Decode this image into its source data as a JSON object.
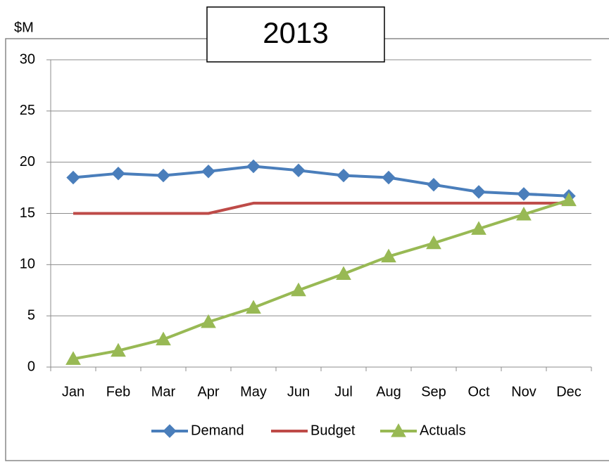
{
  "chart_data": {
    "type": "line",
    "title": "2013",
    "ylabel": "$M",
    "categories": [
      "Jan",
      "Feb",
      "Mar",
      "Apr",
      "May",
      "Jun",
      "Jul",
      "Aug",
      "Sep",
      "Oct",
      "Nov",
      "Dec"
    ],
    "series": [
      {
        "name": "Demand",
        "color": "#4a7ebb",
        "marker": "diamond",
        "values": [
          18.5,
          18.9,
          18.7,
          19.1,
          19.6,
          19.2,
          18.7,
          18.5,
          17.8,
          17.1,
          16.9,
          16.7
        ]
      },
      {
        "name": "Budget",
        "color": "#be4b48",
        "marker": "none",
        "values": [
          15,
          15,
          15,
          15,
          16,
          16,
          16,
          16,
          16,
          16,
          16,
          16
        ]
      },
      {
        "name": "Actuals",
        "color": "#98b954",
        "marker": "triangle",
        "values": [
          0.8,
          1.6,
          2.7,
          4.4,
          5.8,
          7.5,
          9.1,
          10.8,
          12.1,
          13.5,
          14.9,
          16.3
        ]
      }
    ],
    "ylim": [
      0,
      30
    ],
    "yticks": [
      0,
      5,
      10,
      15,
      20,
      25,
      30
    ],
    "grid": true,
    "legend": "bottom"
  }
}
